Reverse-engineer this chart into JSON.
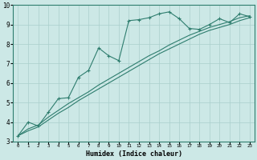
{
  "xlabel": "Humidex (Indice chaleur)",
  "x_values": [
    0,
    1,
    2,
    3,
    4,
    5,
    6,
    7,
    8,
    9,
    10,
    11,
    12,
    13,
    14,
    15,
    16,
    17,
    18,
    19,
    20,
    21,
    22,
    23
  ],
  "line1_y": [
    3.3,
    4.0,
    3.8,
    4.5,
    5.2,
    5.25,
    6.3,
    6.65,
    7.8,
    7.4,
    7.15,
    9.2,
    9.25,
    9.35,
    9.55,
    9.65,
    9.3,
    8.8,
    8.75,
    9.0,
    9.3,
    9.1,
    9.55,
    9.4
  ],
  "line2_y": [
    3.3,
    3.55,
    3.75,
    4.1,
    4.45,
    4.75,
    5.1,
    5.4,
    5.7,
    6.0,
    6.3,
    6.6,
    6.9,
    7.2,
    7.5,
    7.75,
    8.0,
    8.25,
    8.5,
    8.7,
    8.85,
    9.0,
    9.2,
    9.35
  ],
  "line3_y": [
    3.3,
    3.65,
    3.85,
    4.25,
    4.6,
    4.95,
    5.25,
    5.55,
    5.9,
    6.2,
    6.5,
    6.8,
    7.1,
    7.4,
    7.65,
    7.95,
    8.2,
    8.45,
    8.65,
    8.85,
    9.0,
    9.15,
    9.35,
    9.45
  ],
  "line_color": "#2e7d6e",
  "bg_color": "#cce8e6",
  "grid_color": "#aacfcc",
  "ylim": [
    3,
    10
  ],
  "xlim": [
    -0.5,
    23.5
  ],
  "yticks": [
    3,
    4,
    5,
    6,
    7,
    8,
    9,
    10
  ],
  "xtick_labels": [
    "0",
    "1",
    "2",
    "3",
    "4",
    "5",
    "6",
    "7",
    "8",
    "9",
    "10",
    "11",
    "12",
    "13",
    "14",
    "15",
    "16",
    "17",
    "18",
    "19",
    "20",
    "21",
    "22",
    "23"
  ]
}
